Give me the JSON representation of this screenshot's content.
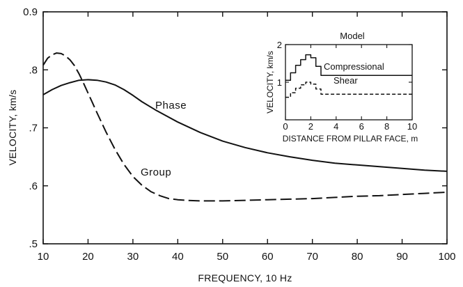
{
  "chart_data": [
    {
      "type": "line",
      "title": "",
      "xlabel": "FREQUENCY, 10 Hz",
      "ylabel": "VELOCITY, km/s",
      "xlim": [
        10,
        100
      ],
      "ylim": [
        0.5,
        0.9
      ],
      "x_ticks": [
        10,
        20,
        30,
        40,
        50,
        60,
        70,
        80,
        90,
        100
      ],
      "x_tick_labels": [
        "10",
        "20",
        "30",
        "40",
        "50",
        "60",
        "70",
        "80",
        "90",
        "100"
      ],
      "y_ticks": [
        0.5,
        0.6,
        0.7,
        0.8,
        0.9
      ],
      "y_tick_labels": [
        ".5",
        ".6",
        ".7",
        ".8",
        "0.9"
      ],
      "grid": false,
      "series": [
        {
          "name": "Phase",
          "style": "solid",
          "x": [
            10,
            12,
            14,
            16,
            18,
            20,
            22,
            24,
            26,
            28,
            30,
            32,
            35,
            40,
            45,
            50,
            55,
            60,
            65,
            70,
            75,
            80,
            85,
            90,
            95,
            100
          ],
          "y": [
            0.757,
            0.766,
            0.773,
            0.778,
            0.782,
            0.783,
            0.782,
            0.779,
            0.774,
            0.766,
            0.756,
            0.745,
            0.731,
            0.71,
            0.692,
            0.677,
            0.666,
            0.657,
            0.65,
            0.644,
            0.639,
            0.636,
            0.633,
            0.63,
            0.627,
            0.625
          ]
        },
        {
          "name": "Group",
          "style": "dashed",
          "x": [
            10,
            11,
            12,
            13,
            14,
            15,
            16,
            17,
            18,
            19,
            20,
            21,
            22,
            24,
            26,
            28,
            30,
            32,
            34,
            36,
            38,
            40,
            42,
            45,
            50,
            55,
            60,
            65,
            70,
            75,
            80,
            85,
            90,
            95,
            100
          ],
          "y": [
            0.808,
            0.82,
            0.826,
            0.829,
            0.828,
            0.824,
            0.817,
            0.807,
            0.793,
            0.777,
            0.76,
            0.743,
            0.726,
            0.693,
            0.663,
            0.637,
            0.616,
            0.601,
            0.59,
            0.583,
            0.578,
            0.576,
            0.575,
            0.574,
            0.574,
            0.575,
            0.576,
            0.577,
            0.578,
            0.58,
            0.582,
            0.583,
            0.585,
            0.587,
            0.589
          ]
        }
      ]
    },
    {
      "type": "line",
      "title": "Model",
      "xlabel": "DISTANCE FROM PILLAR FACE, m",
      "ylabel": "VELOCITY, km/s",
      "xlim": [
        0,
        10
      ],
      "ylim": [
        0,
        2
      ],
      "x_ticks": [
        0,
        2,
        4,
        6,
        8,
        10
      ],
      "x_tick_labels": [
        "0",
        "2",
        "4",
        "6",
        "8",
        "10"
      ],
      "y_ticks": [
        0,
        1,
        2
      ],
      "y_tick_labels": [
        "",
        "1",
        "2"
      ],
      "grid": false,
      "series": [
        {
          "name": "Compressional",
          "style": "solid",
          "x": [
            0,
            0.4,
            0.4,
            0.8,
            0.8,
            1.2,
            1.2,
            1.6,
            1.6,
            2.0,
            2.0,
            2.4,
            2.4,
            2.8,
            2.8,
            10
          ],
          "y": [
            1.05,
            1.05,
            1.25,
            1.25,
            1.45,
            1.45,
            1.6,
            1.6,
            1.73,
            1.73,
            1.65,
            1.65,
            1.42,
            1.42,
            1.18,
            1.18
          ]
        },
        {
          "name": "Shear",
          "style": "dashed",
          "x": [
            0,
            0.4,
            0.4,
            0.8,
            0.8,
            1.2,
            1.2,
            1.6,
            1.6,
            2.0,
            2.0,
            2.4,
            2.4,
            2.8,
            2.8,
            10
          ],
          "y": [
            0.6,
            0.6,
            0.72,
            0.72,
            0.84,
            0.84,
            0.93,
            0.93,
            1.0,
            1.0,
            0.95,
            0.95,
            0.82,
            0.82,
            0.68,
            0.68
          ]
        }
      ]
    }
  ]
}
